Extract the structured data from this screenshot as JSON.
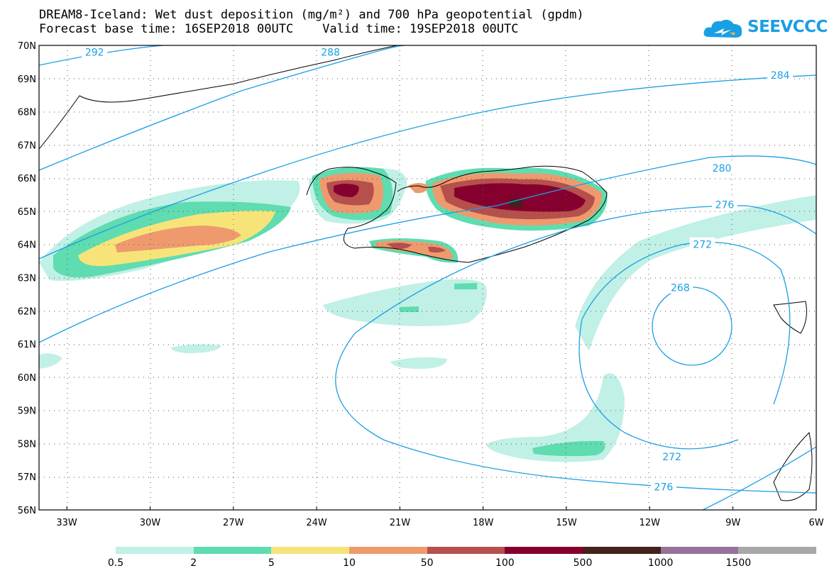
{
  "header": {
    "title_line1": "DREAM8-Iceland: Wet dust deposition (mg/m²) and 700 hPa geopotential (gpdm)",
    "title_line2": "Forecast base time: 16SEP2018 00UTC    Valid time: 19SEP2018 00UTC"
  },
  "logo": {
    "text": "SEEVCCC",
    "color": "#1a9fe3"
  },
  "map": {
    "region": "Iceland",
    "lat_labels": [
      "70N",
      "69N",
      "68N",
      "67N",
      "66N",
      "65N",
      "64N",
      "63N",
      "62N",
      "61N",
      "60N",
      "59N",
      "58N",
      "57N",
      "56N"
    ],
    "lon_labels": [
      "33W",
      "30W",
      "27W",
      "24W",
      "21W",
      "18W",
      "15W",
      "12W",
      "9W",
      "6W"
    ],
    "lat_range": [
      56,
      70
    ],
    "lon_range": [
      -34.0,
      -6.0
    ],
    "grid": "dotted",
    "contour_color": "#1a9fe3",
    "contour_labels": [
      {
        "value": "292",
        "lon": -32.0,
        "lat": 69.8
      },
      {
        "value": "288",
        "lon": -23.5,
        "lat": 69.8
      },
      {
        "value": "284",
        "lon": -7.3,
        "lat": 69.1
      },
      {
        "value": "280",
        "lon": -9.4,
        "lat": 66.3
      },
      {
        "value": "276",
        "lon": -9.3,
        "lat": 65.2
      },
      {
        "value": "272",
        "lon": -10.1,
        "lat": 64.0
      },
      {
        "value": "268",
        "lon": -10.9,
        "lat": 62.7
      },
      {
        "value": "272",
        "lon": -11.2,
        "lat": 57.6
      },
      {
        "value": "276",
        "lon": -11.5,
        "lat": 56.7
      }
    ]
  },
  "legend": {
    "colors": [
      "#c0f0e6",
      "#5fdcb0",
      "#f7e479",
      "#ef9a6e",
      "#b5504c",
      "#85002e",
      "#43221b",
      "#96719a",
      "#a8a8a8"
    ],
    "labels": [
      "0.5",
      "2",
      "5",
      "10",
      "50",
      "100",
      "500",
      "1000",
      "1500"
    ]
  }
}
